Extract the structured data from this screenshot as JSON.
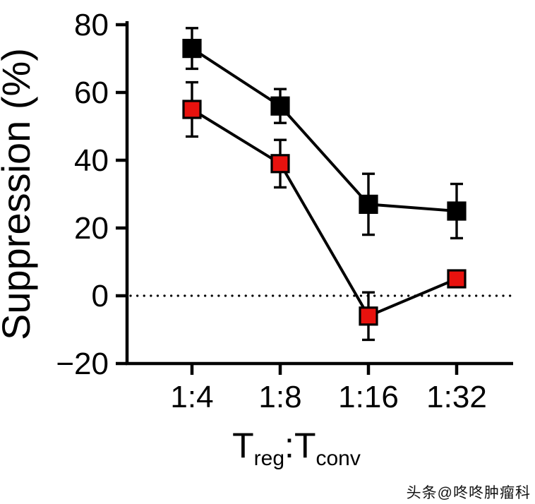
{
  "chart_data": {
    "type": "line",
    "title": "",
    "categories": [
      "1:4",
      "1:8",
      "1:16",
      "1:32"
    ],
    "series": [
      {
        "name": "black-squares",
        "marker": "square",
        "color": "#000000",
        "values": [
          73,
          56,
          27,
          25
        ],
        "errors": [
          6,
          5,
          9,
          8
        ]
      },
      {
        "name": "red-squares",
        "marker": "square",
        "color": "#e8120e",
        "values": [
          55,
          39,
          -6,
          5
        ],
        "errors": [
          8,
          7,
          7,
          2
        ]
      }
    ],
    "ylabel": "Suppression (%)",
    "xlabel_parts": {
      "t1": "T",
      "sub1": "reg",
      "colon": ":",
      "t2": "T",
      "sub2": "conv"
    },
    "ylim": [
      -20,
      80
    ],
    "yticks": [
      -20,
      0,
      20,
      40,
      60,
      80
    ],
    "grid": false,
    "legend": "none",
    "zero_line": "dotted"
  },
  "watermark": {
    "text": "头条@咚咚肿瘤科"
  }
}
